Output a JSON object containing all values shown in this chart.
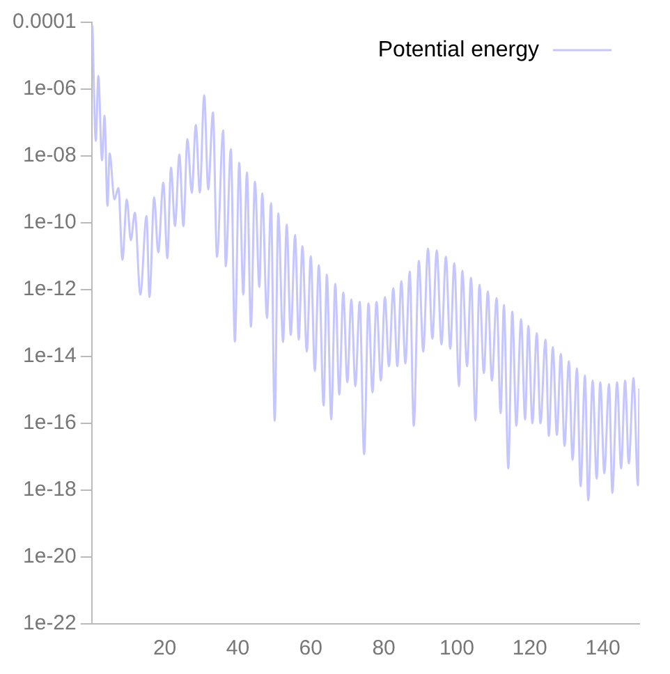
{
  "chart_data": {
    "type": "line",
    "log": "y",
    "legend": "top right",
    "marker": "none",
    "line_style": "solid",
    "xlim": [
      0,
      150
    ],
    "xticks": [
      20,
      40,
      60,
      80,
      100,
      120,
      140
    ],
    "ylim": [
      1e-22,
      0.0001
    ],
    "yticks": [
      {
        "value": 1e-22,
        "label": "1e-22"
      },
      {
        "value": 1e-20,
        "label": "1e-20"
      },
      {
        "value": 1e-18,
        "label": "1e-18"
      },
      {
        "value": 1e-16,
        "label": "1e-16"
      },
      {
        "value": 1e-14,
        "label": "1e-14"
      },
      {
        "value": 1e-12,
        "label": "1e-12"
      },
      {
        "value": 1e-10,
        "label": "1e-10"
      },
      {
        "value": 1e-08,
        "label": "1e-08"
      },
      {
        "value": 1e-06,
        "label": "1e-06"
      },
      0.0001
    ],
    "series": [
      {
        "name": "Potential energy",
        "color": "#c6c6ff",
        "x": [
          0.2,
          1.1,
          1.8,
          2.8,
          3.5,
          4.3,
          4.9,
          6.2,
          7.3,
          8.4,
          9.6,
          10.7,
          11.8,
          13.3,
          15.0,
          15.8,
          17.1,
          18.2,
          19.6,
          20.7,
          21.7,
          22.8,
          24.0,
          25.1,
          26.2,
          27.4,
          28.5,
          29.6,
          30.8,
          31.9,
          33.2,
          34.3,
          36.0,
          36.7,
          38.1,
          39.2,
          40.4,
          41.5,
          42.5,
          43.6,
          44.7,
          45.9,
          46.7,
          48.0,
          49.1,
          50.1,
          51.1,
          52.4,
          53.4,
          54.5,
          55.7,
          56.7,
          57.7,
          58.9,
          60.0,
          61.1,
          62.2,
          63.5,
          64.4,
          65.6,
          66.7,
          67.8,
          68.9,
          70.0,
          71.1,
          72.2,
          73.4,
          74.6,
          75.8,
          76.9,
          78.0,
          79.2,
          80.3,
          81.4,
          82.6,
          83.7,
          84.8,
          85.9,
          87.1,
          88.2,
          89.6,
          90.8,
          92.1,
          93.3,
          94.5,
          95.8,
          97.0,
          98.2,
          99.3,
          100.6,
          101.5,
          102.8,
          103.9,
          105.1,
          106.2,
          107.4,
          108.5,
          109.6,
          110.9,
          112.0,
          112.9,
          114.1,
          115.2,
          116.3,
          117.6,
          118.7,
          119.6,
          120.7,
          121.9,
          122.9,
          124.3,
          125.2,
          126.3,
          127.4,
          128.5,
          129.5,
          130.7,
          131.7,
          132.9,
          133.9,
          135.1,
          136.0,
          137.2,
          138.3,
          139.3,
          140.4,
          141.7,
          142.6,
          143.9,
          145.0,
          146.1,
          147.1,
          148.4,
          149.6,
          150.0
        ],
        "values": [
          7.9e-05,
          2.8e-08,
          2.5e-06,
          7.4e-09,
          1.6e-07,
          3.2e-10,
          1.2e-08,
          5e-10,
          1.1e-09,
          7.8e-12,
          5e-10,
          3e-11,
          2e-10,
          7.1e-13,
          1.6e-10,
          6e-13,
          5.8e-10,
          1.3e-11,
          1.6e-09,
          8.7e-12,
          4.5e-09,
          8.1e-11,
          1.1e-08,
          7.9e-11,
          3.2e-08,
          7.9e-10,
          8.5e-08,
          8.1e-10,
          6.6e-07,
          1e-09,
          2e-07,
          9.5e-12,
          5.8e-08,
          5e-12,
          1.6e-08,
          2.8e-14,
          6.3e-09,
          7.1e-13,
          3.2e-09,
          7.9e-14,
          1.7e-09,
          1.2e-12,
          7.6e-10,
          1.4e-13,
          3.9e-10,
          1.2e-16,
          1.9e-10,
          2.7e-14,
          8.9e-11,
          4.4e-14,
          4.3e-11,
          3.2e-14,
          2e-11,
          1.4e-14,
          1e-11,
          3.7e-15,
          5.4e-12,
          3.4e-16,
          2.8e-12,
          1.3e-16,
          1.5e-12,
          7.2e-16,
          8.3e-13,
          1.7e-15,
          5.1e-13,
          1.3e-15,
          4.3e-13,
          1.2e-17,
          3.9e-13,
          8.5e-16,
          4.3e-13,
          1.9e-15,
          6e-13,
          5.1e-15,
          1.1e-12,
          5.1e-15,
          1.8e-12,
          6.2e-15,
          3.5e-12,
          8.5e-17,
          7.2e-12,
          1.4e-14,
          1.7e-11,
          3.4e-14,
          1.5e-11,
          2.3e-14,
          9.8e-12,
          1.7e-14,
          6.2e-12,
          1.3e-15,
          3.7e-12,
          5.1e-15,
          2.3e-12,
          1.2e-16,
          1.4e-12,
          3.2e-15,
          8.9e-13,
          1.9e-15,
          5.6e-13,
          2e-16,
          3.5e-13,
          4.5e-18,
          2.2e-13,
          8.5e-17,
          1.3e-13,
          1.3e-16,
          8.3e-14,
          1e-16,
          5e-14,
          1e-16,
          3.2e-14,
          4.2e-17,
          1.9e-14,
          4.5e-17,
          1.2e-14,
          2.1e-17,
          7.2e-15,
          8.1e-18,
          4.4e-15,
          1.3e-18,
          2.7e-15,
          4.9e-19,
          1.9e-15,
          2.2e-18,
          1.7e-15,
          3.2e-18,
          1.5e-15,
          8.3e-19,
          1.7e-15,
          4.5e-18,
          1.9e-15,
          6.3e-18,
          2.3e-15,
          1.4e-18,
          1.1e-15
        ]
      }
    ]
  }
}
